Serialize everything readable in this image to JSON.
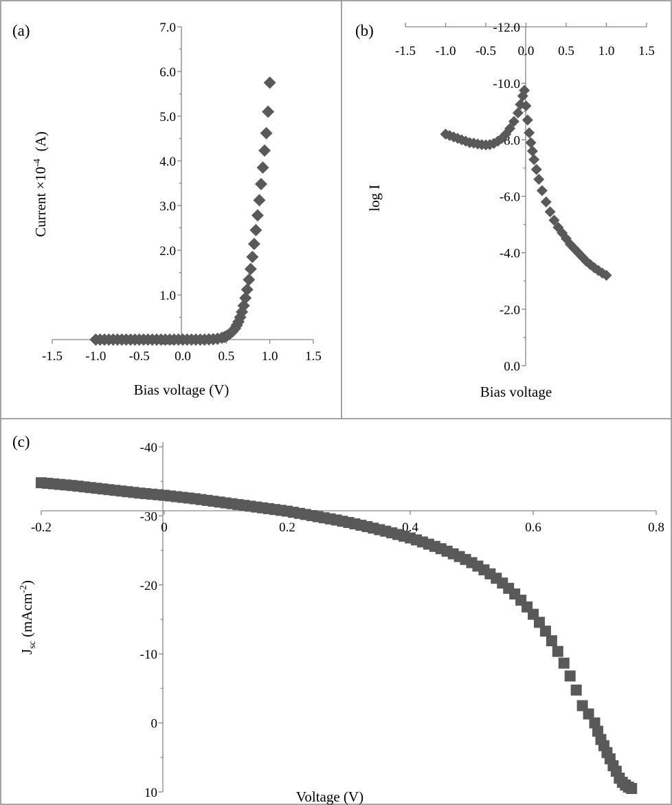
{
  "chart_data": [
    {
      "panel_label": "(a)",
      "type": "scatter",
      "marker": "diamond",
      "color": "#595959",
      "xlabel": "Bias voltage (V)",
      "ylabel_main": "Current ×10",
      "ylabel_sup": "-4",
      "ylabel_unit": "  (A)",
      "xlim": [
        -1.5,
        1.5
      ],
      "ylim": [
        0,
        7
      ],
      "xticks": [
        "-1.5",
        "-1.0",
        "-0.5",
        "0.0",
        "0.5",
        "1.0",
        "1.5"
      ],
      "yticks": [
        "0.0",
        "1.0",
        "2.0",
        "3.0",
        "4.0",
        "5.0",
        "6.0",
        "7.0"
      ],
      "grid": false,
      "x": [
        -1.0,
        -0.95,
        -0.9,
        -0.85,
        -0.8,
        -0.75,
        -0.7,
        -0.65,
        -0.6,
        -0.55,
        -0.5,
        -0.45,
        -0.4,
        -0.35,
        -0.3,
        -0.25,
        -0.2,
        -0.15,
        -0.1,
        -0.05,
        0.0,
        0.05,
        0.1,
        0.15,
        0.2,
        0.25,
        0.3,
        0.35,
        0.4,
        0.45,
        0.48,
        0.51,
        0.54,
        0.57,
        0.6,
        0.62,
        0.64,
        0.66,
        0.68,
        0.7,
        0.72,
        0.74,
        0.76,
        0.78,
        0.8,
        0.82,
        0.84,
        0.86,
        0.88,
        0.9,
        0.92,
        0.94,
        0.96,
        0.98,
        1.0
      ],
      "y": [
        0,
        0,
        0,
        0,
        0,
        0,
        0,
        0,
        0,
        0,
        0,
        0,
        0,
        0,
        0,
        0,
        0,
        0,
        0,
        0,
        0,
        0,
        0,
        0,
        0,
        0,
        0.005,
        0.01,
        0.02,
        0.04,
        0.06,
        0.09,
        0.13,
        0.18,
        0.25,
        0.32,
        0.4,
        0.5,
        0.62,
        0.76,
        0.93,
        1.12,
        1.34,
        1.58,
        1.85,
        2.14,
        2.45,
        2.78,
        3.12,
        3.48,
        3.85,
        4.23,
        4.62,
        5.1,
        5.75
      ]
    },
    {
      "panel_label": "(b)",
      "type": "scatter",
      "marker": "diamond",
      "color": "#595959",
      "xlabel": "Bias voltage",
      "ylabel": "log I",
      "xlim": [
        -1.5,
        1.5
      ],
      "ylim": [
        -12,
        0
      ],
      "xticks": [
        "-1.5",
        "-1.0",
        "-0.5",
        "0.0",
        "0.5",
        "1.0",
        "1.5"
      ],
      "yticks": [
        "0.0",
        "-2.0",
        "-4.0",
        "-6.0",
        "-8.0",
        "-10.0",
        "-12.0"
      ],
      "grid": false,
      "x": [
        -1.0,
        -0.95,
        -0.9,
        -0.85,
        -0.8,
        -0.75,
        -0.7,
        -0.65,
        -0.6,
        -0.55,
        -0.5,
        -0.45,
        -0.4,
        -0.35,
        -0.3,
        -0.25,
        -0.2,
        -0.15,
        -0.1,
        -0.07,
        -0.04,
        -0.02,
        0.0,
        0.02,
        0.04,
        0.06,
        0.08,
        0.1,
        0.13,
        0.16,
        0.2,
        0.25,
        0.3,
        0.35,
        0.4,
        0.45,
        0.5,
        0.55,
        0.6,
        0.65,
        0.7,
        0.75,
        0.8,
        0.85,
        0.9,
        0.95,
        1.0
      ],
      "y": [
        -8.2,
        -8.15,
        -8.1,
        -8.05,
        -8.0,
        -7.95,
        -7.9,
        -7.88,
        -7.85,
        -7.83,
        -7.82,
        -7.83,
        -7.87,
        -7.95,
        -8.05,
        -8.2,
        -8.4,
        -8.65,
        -8.95,
        -9.25,
        -9.55,
        -9.75,
        -9.2,
        -8.7,
        -8.25,
        -7.9,
        -7.6,
        -7.3,
        -6.95,
        -6.6,
        -6.2,
        -5.8,
        -5.45,
        -5.15,
        -4.9,
        -4.7,
        -4.5,
        -4.3,
        -4.15,
        -4.0,
        -3.85,
        -3.7,
        -3.58,
        -3.47,
        -3.37,
        -3.28,
        -3.2
      ]
    },
    {
      "panel_label": "(c)",
      "type": "scatter",
      "marker": "square",
      "color": "#595959",
      "xlabel": "Voltage (V)",
      "ylabel_main": "J",
      "ylabel_sub": "sc",
      "ylabel_unit": " (mAcm",
      "ylabel_sup": "-2",
      "ylabel_close": ")",
      "xlim": [
        -0.2,
        0.8
      ],
      "ylim": [
        -40,
        10
      ],
      "xticks": [
        "-0.2",
        "0",
        "0.2",
        "0.4",
        "0.6",
        "0.8"
      ],
      "yticks": [
        "10",
        "0",
        "-10",
        "-20",
        "-30",
        "-40"
      ],
      "grid": false,
      "x": [
        -0.2,
        -0.19,
        -0.18,
        -0.17,
        -0.16,
        -0.15,
        -0.14,
        -0.13,
        -0.12,
        -0.11,
        -0.1,
        -0.09,
        -0.08,
        -0.07,
        -0.06,
        -0.05,
        -0.04,
        -0.03,
        -0.02,
        -0.01,
        0.0,
        0.01,
        0.02,
        0.03,
        0.04,
        0.05,
        0.06,
        0.07,
        0.08,
        0.09,
        0.1,
        0.11,
        0.12,
        0.13,
        0.14,
        0.15,
        0.16,
        0.17,
        0.18,
        0.19,
        0.2,
        0.21,
        0.22,
        0.23,
        0.24,
        0.25,
        0.26,
        0.27,
        0.28,
        0.29,
        0.3,
        0.31,
        0.32,
        0.33,
        0.34,
        0.35,
        0.36,
        0.37,
        0.38,
        0.39,
        0.4,
        0.41,
        0.42,
        0.43,
        0.44,
        0.45,
        0.46,
        0.47,
        0.48,
        0.49,
        0.5,
        0.51,
        0.52,
        0.53,
        0.54,
        0.55,
        0.56,
        0.57,
        0.58,
        0.59,
        0.6,
        0.61,
        0.62,
        0.63,
        0.64,
        0.65,
        0.66,
        0.67,
        0.68,
        0.69,
        0.7,
        0.705,
        0.71,
        0.715,
        0.72,
        0.725,
        0.73,
        0.735,
        0.74,
        0.745,
        0.75,
        0.755,
        0.76
      ],
      "y": [
        -34.8,
        -34.72,
        -34.64,
        -34.56,
        -34.48,
        -34.4,
        -34.3,
        -34.2,
        -34.1,
        -34.0,
        -33.9,
        -33.8,
        -33.7,
        -33.6,
        -33.5,
        -33.4,
        -33.3,
        -33.22,
        -33.14,
        -33.06,
        -32.98,
        -32.88,
        -32.78,
        -32.68,
        -32.58,
        -32.48,
        -32.36,
        -32.24,
        -32.12,
        -32.0,
        -31.88,
        -31.76,
        -31.64,
        -31.52,
        -31.4,
        -31.28,
        -31.16,
        -31.04,
        -30.92,
        -30.8,
        -30.68,
        -30.52,
        -30.36,
        -30.2,
        -30.04,
        -29.88,
        -29.72,
        -29.56,
        -29.4,
        -29.22,
        -29.04,
        -28.84,
        -28.64,
        -28.44,
        -28.22,
        -28.0,
        -27.78,
        -27.54,
        -27.3,
        -27.05,
        -26.8,
        -26.52,
        -26.22,
        -25.9,
        -25.58,
        -25.24,
        -24.88,
        -24.5,
        -24.1,
        -23.68,
        -23.22,
        -22.72,
        -22.18,
        -21.6,
        -20.96,
        -20.26,
        -19.5,
        -18.68,
        -17.78,
        -16.8,
        -15.74,
        -14.58,
        -13.3,
        -11.9,
        -10.36,
        -8.66,
        -6.8,
        -4.76,
        -2.5,
        -1.3,
        0.0,
        1.2,
        2.4,
        3.3,
        4.3,
        5.2,
        6.2,
        7.0,
        8.0,
        8.6,
        9.0,
        9.3,
        9.5
      ]
    }
  ]
}
